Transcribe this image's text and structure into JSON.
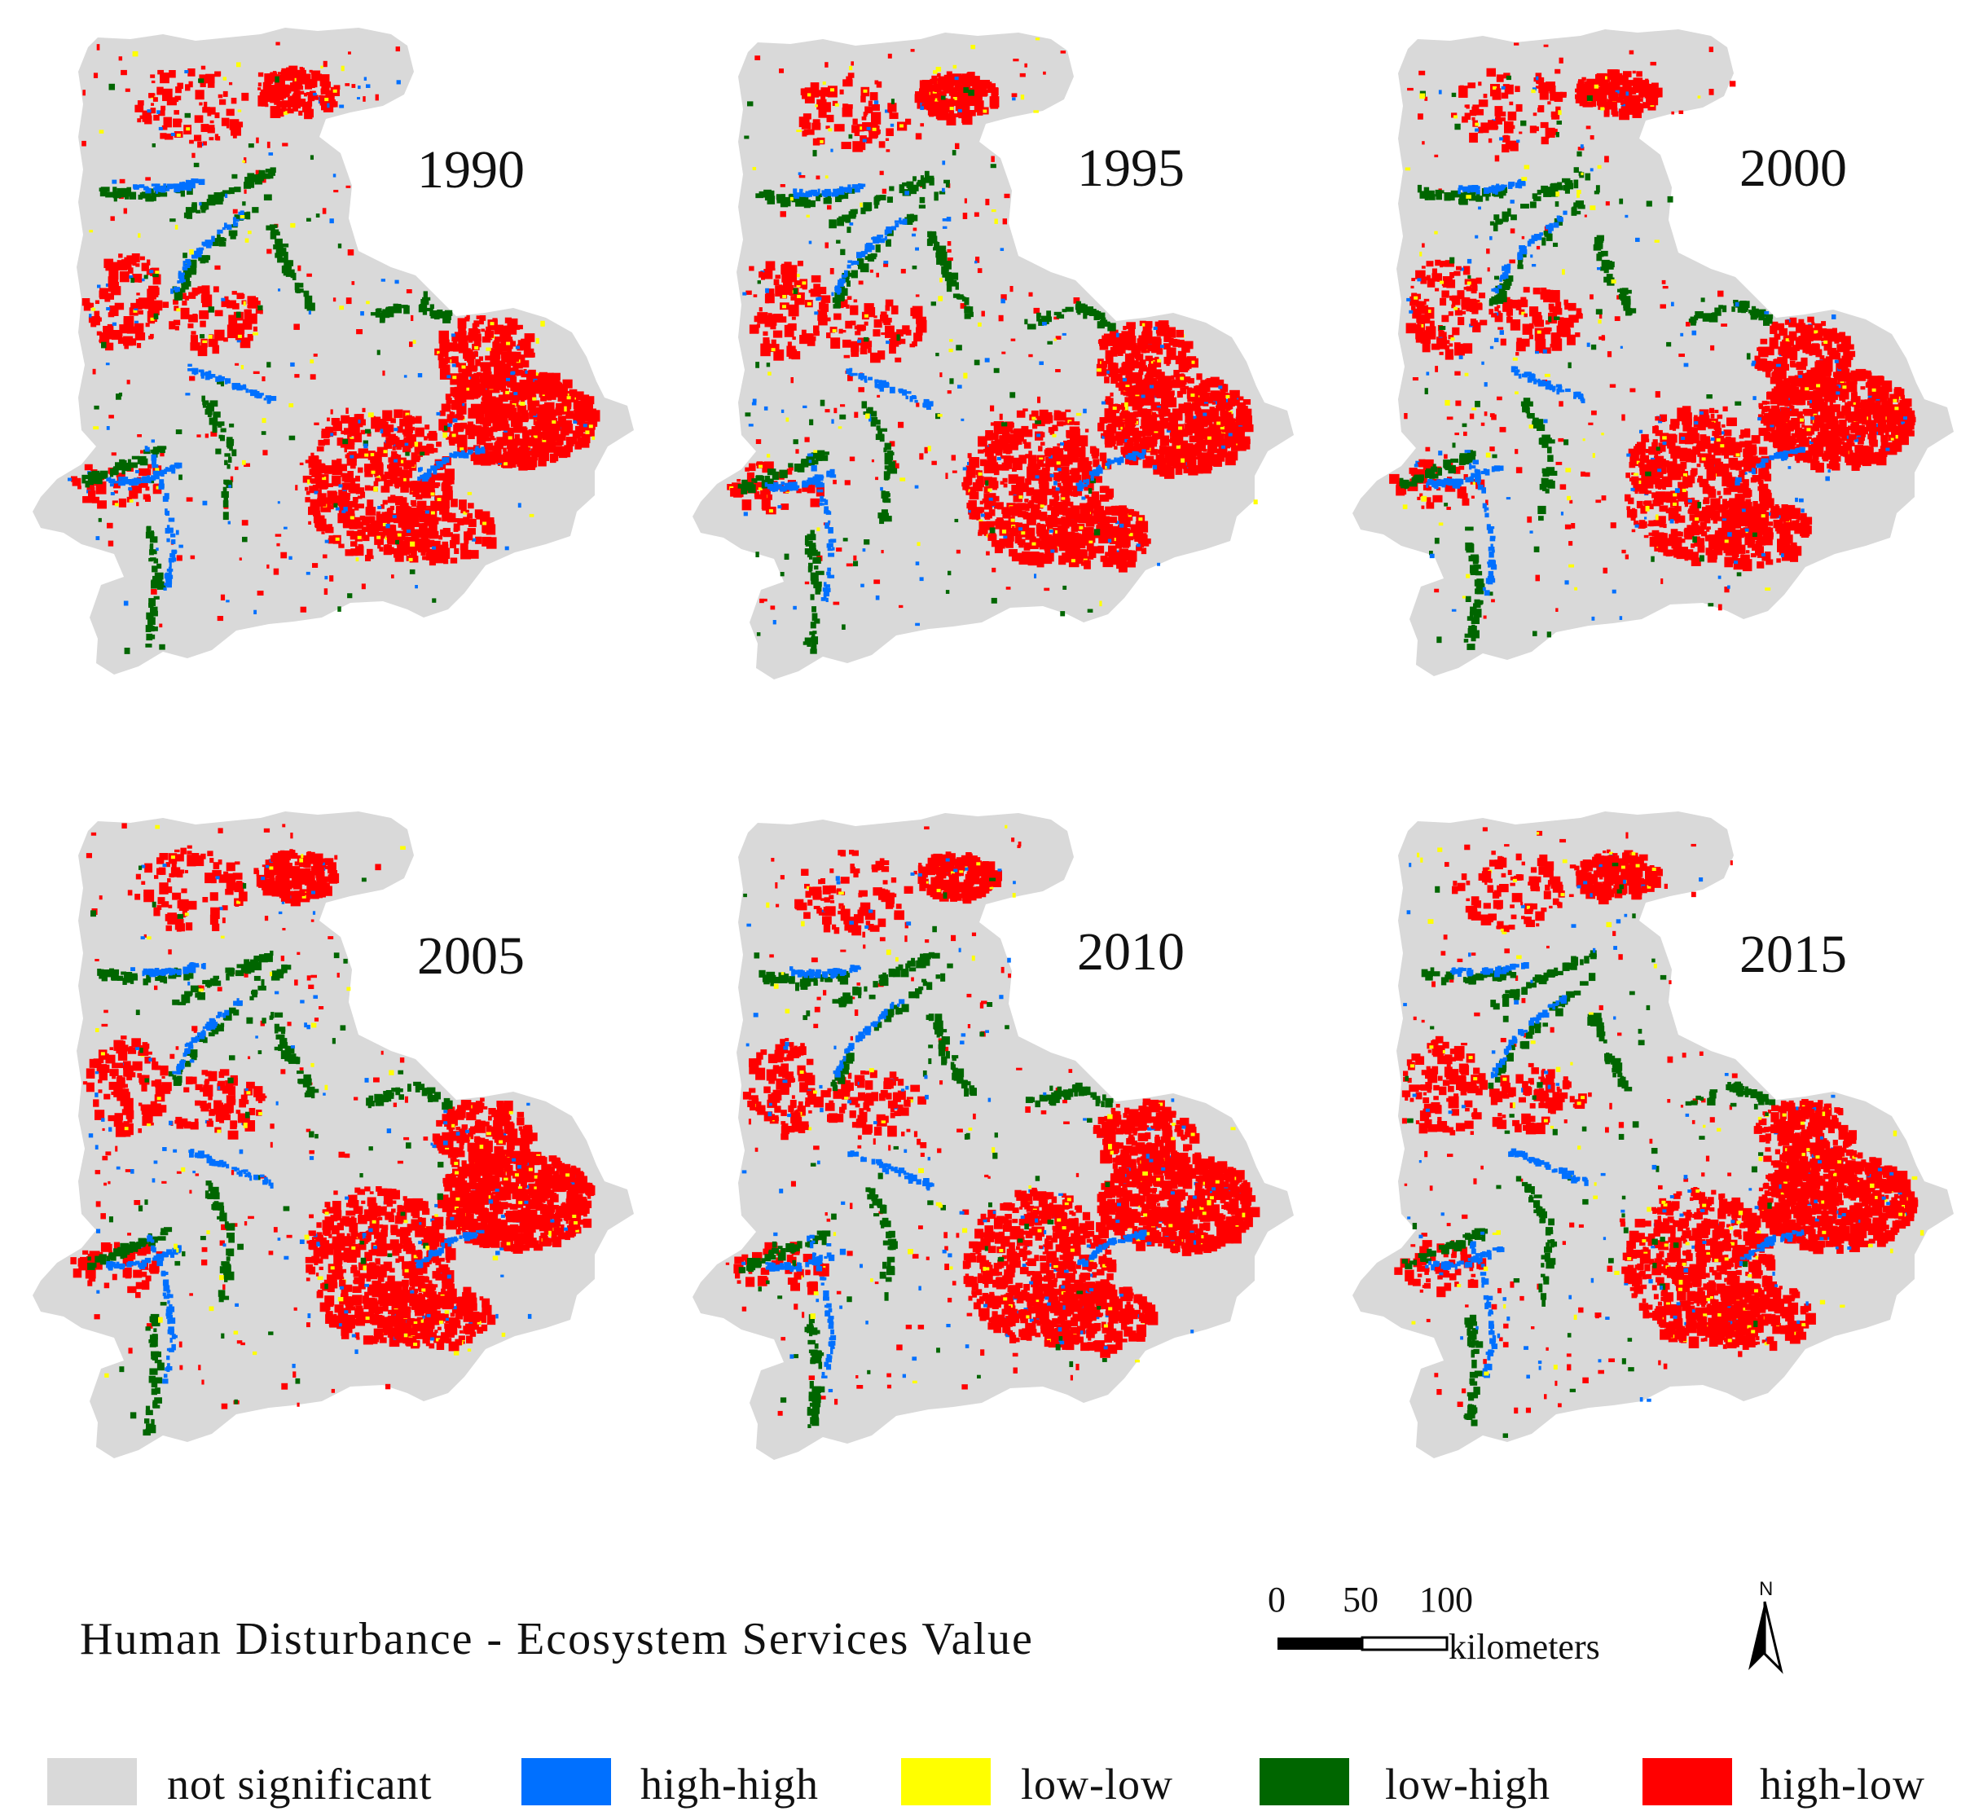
{
  "panels": [
    {
      "year": "1990",
      "variant": 0.0
    },
    {
      "year": "1995",
      "variant": 0.15
    },
    {
      "year": "2000",
      "variant": 0.3
    },
    {
      "year": "2005",
      "variant": 0.45
    },
    {
      "year": "2010",
      "variant": 0.6
    },
    {
      "year": "2015",
      "variant": 0.8
    }
  ],
  "caption": "Human Disturbance - Ecosystem Services Value",
  "scale_bar": {
    "ticks": [
      "0",
      "50",
      "100"
    ],
    "unit": "kilometers"
  },
  "north_arrow": {
    "label": "N"
  },
  "legend": [
    {
      "label": "not significant",
      "color": "#d9d9d9",
      "key": "not-significant"
    },
    {
      "label": "high-high",
      "color": "#0070ff",
      "key": "high-high"
    },
    {
      "label": "low-low",
      "color": "#ffff00",
      "key": "low-low"
    },
    {
      "label": "low-high",
      "color": "#006600",
      "key": "low-high"
    },
    {
      "label": "high-low",
      "color": "#ff0000",
      "key": "high-low"
    }
  ],
  "colors": {
    "background_region": "#d9d9d9",
    "high_high": "#0070ff",
    "low_low": "#ffff00",
    "low_high": "#006600",
    "high_low": "#ff0000"
  }
}
